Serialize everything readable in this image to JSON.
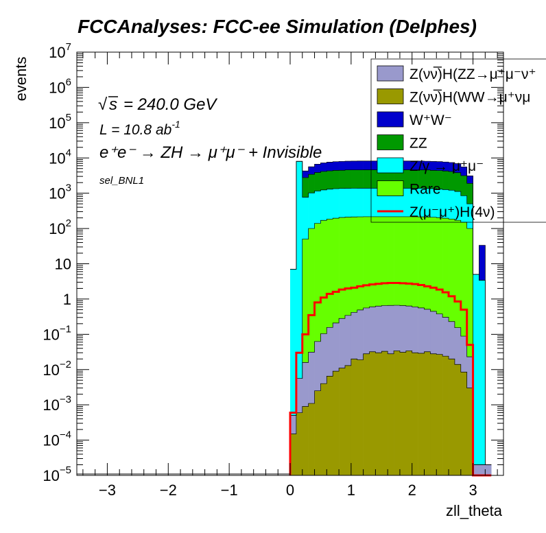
{
  "chart_data": {
    "type": "histogram-stack-log",
    "title": "FCCAnalyses: FCC-ee Simulation (Delphes)",
    "xlabel": "zll_theta",
    "ylabel": "events",
    "xlim": [
      -3.5,
      3.5
    ],
    "ylim": [
      1e-05,
      10000000
    ],
    "y_scale": "log",
    "x_ticks": [
      -3,
      -2,
      -1,
      0,
      1,
      2,
      3
    ],
    "x_tick_labels": [
      "−3",
      "−2",
      "−1",
      "0",
      "1",
      "2",
      "3"
    ],
    "y_ticks": [
      {
        "value": 10000000,
        "base": "10",
        "exp": "7"
      },
      {
        "value": 1000000,
        "base": "10",
        "exp": "6"
      },
      {
        "value": 100000,
        "base": "10",
        "exp": "5"
      },
      {
        "value": 10000,
        "base": "10",
        "exp": "4"
      },
      {
        "value": 1000,
        "base": "10",
        "exp": "3"
      },
      {
        "value": 100,
        "base": "10",
        "exp": "2"
      },
      {
        "value": 10,
        "base": "10",
        "exp": ""
      },
      {
        "value": 1,
        "base": "1",
        "exp": ""
      },
      {
        "value": 0.1,
        "base": "10",
        "exp": "−1"
      },
      {
        "value": 0.01,
        "base": "10",
        "exp": "−2"
      },
      {
        "value": 0.001,
        "base": "10",
        "exp": "−3"
      },
      {
        "value": 0.0001,
        "base": "10",
        "exp": "−4"
      },
      {
        "value": 1e-05,
        "base": "10",
        "exp": "−5"
      }
    ],
    "annotations": {
      "sqrt_s": "= 240.0 GeV",
      "lumi_main": "L = 10.8 ab",
      "lumi_sup": "-1",
      "process": "e⁺e⁻ → ZH → μ⁺μ⁻ + Invisible",
      "selection": "sel_BNL1"
    },
    "legend_position": "top-right",
    "stack_bottom_to_top": [
      "ww_h",
      "zz_h",
      "rare",
      "zgamma",
      "zz",
      "ww"
    ],
    "bins": {
      "start": 0.0,
      "width": 0.1,
      "count": 33
    },
    "series": [
      {
        "key": "zz_h",
        "name": "Z(νν̅)H(ZZ→μ⁺μ⁻ν⁺",
        "color": "#9999cc",
        "values": [
          0.00035,
          0.005,
          0.015,
          0.03,
          0.06,
          0.1,
          0.15,
          0.2,
          0.27,
          0.33,
          0.4,
          0.47,
          0.53,
          0.57,
          0.6,
          0.62,
          0.63,
          0.63,
          0.62,
          0.6,
          0.57,
          0.53,
          0.48,
          0.42,
          0.35,
          0.28,
          0.21,
          0.14,
          0.08,
          0.02,
          1e-05,
          1e-05,
          1e-05
        ]
      },
      {
        "key": "ww_h",
        "name": "Z(νν̅)H(WW→μ⁺νμ",
        "color": "#999900",
        "values": [
          0.00015,
          0.0006,
          0.0009,
          0.0011,
          0.0025,
          0.004,
          0.0065,
          0.009,
          0.011,
          0.013,
          0.02,
          0.019,
          0.028,
          0.032,
          0.03,
          0.033,
          0.028,
          0.034,
          0.031,
          0.034,
          0.03,
          0.029,
          0.032,
          0.028,
          0.027,
          0.024,
          0.02,
          0.014,
          0.0085,
          0.003,
          1e-05,
          1e-05,
          1e-05
        ]
      },
      {
        "key": "ww",
        "name": "W⁺W⁻",
        "color": "#0000cc",
        "values": [
          0,
          0,
          1500,
          2200,
          2800,
          3100,
          3300,
          3400,
          3500,
          3500,
          3550,
          3600,
          3600,
          3600,
          3600,
          3600,
          3600,
          3600,
          3600,
          3600,
          3600,
          3550,
          3500,
          3500,
          3450,
          3400,
          3300,
          3100,
          2400,
          1200,
          0,
          30,
          0
        ]
      },
      {
        "key": "zz",
        "name": "ZZ",
        "color": "#009900",
        "values": [
          0,
          0,
          2000,
          2400,
          2700,
          2900,
          3000,
          3100,
          3100,
          3200,
          3200,
          3200,
          3200,
          3200,
          3200,
          3200,
          3200,
          3200,
          3200,
          3200,
          3200,
          3200,
          3200,
          3100,
          3100,
          3000,
          2900,
          2700,
          2300,
          1400,
          0,
          0,
          0
        ]
      },
      {
        "key": "zgamma",
        "name": "Z/γ → μ⁺μ⁻",
        "color": "#00ffff",
        "values": [
          7.0,
          8000,
          720,
          920,
          1020,
          1070,
          1120,
          1150,
          1160,
          1170,
          1170,
          1170,
          1170,
          1170,
          1170,
          1170,
          1170,
          1170,
          1170,
          1170,
          1160,
          1160,
          1150,
          1140,
          1100,
          1070,
          1030,
          950,
          700,
          400,
          5,
          3.4,
          0
        ]
      },
      {
        "key": "rare",
        "name": "Rare",
        "color": "#66ff00",
        "values": [
          0,
          0,
          50,
          100,
          140,
          170,
          185,
          195,
          205,
          210,
          212,
          214,
          215,
          215,
          215,
          215,
          215,
          215,
          215,
          215,
          214,
          213,
          211,
          208,
          203,
          195,
          185,
          170,
          150,
          100,
          0,
          0,
          0
        ]
      },
      {
        "key": "signal",
        "name": "Z(μ⁻μ⁺)H(4ν)",
        "color": "#ff0000",
        "line_only": true,
        "values": [
          0.0006,
          0.03,
          0.1,
          0.35,
          0.8,
          1.1,
          1.4,
          1.6,
          1.85,
          2.0,
          2.1,
          2.3,
          2.45,
          2.6,
          2.7,
          2.8,
          2.85,
          2.85,
          2.8,
          2.75,
          2.65,
          2.5,
          2.3,
          2.1,
          1.85,
          1.55,
          1.2,
          0.85,
          0.5,
          0.05,
          1e-05,
          1e-05,
          1e-05
        ]
      }
    ]
  }
}
